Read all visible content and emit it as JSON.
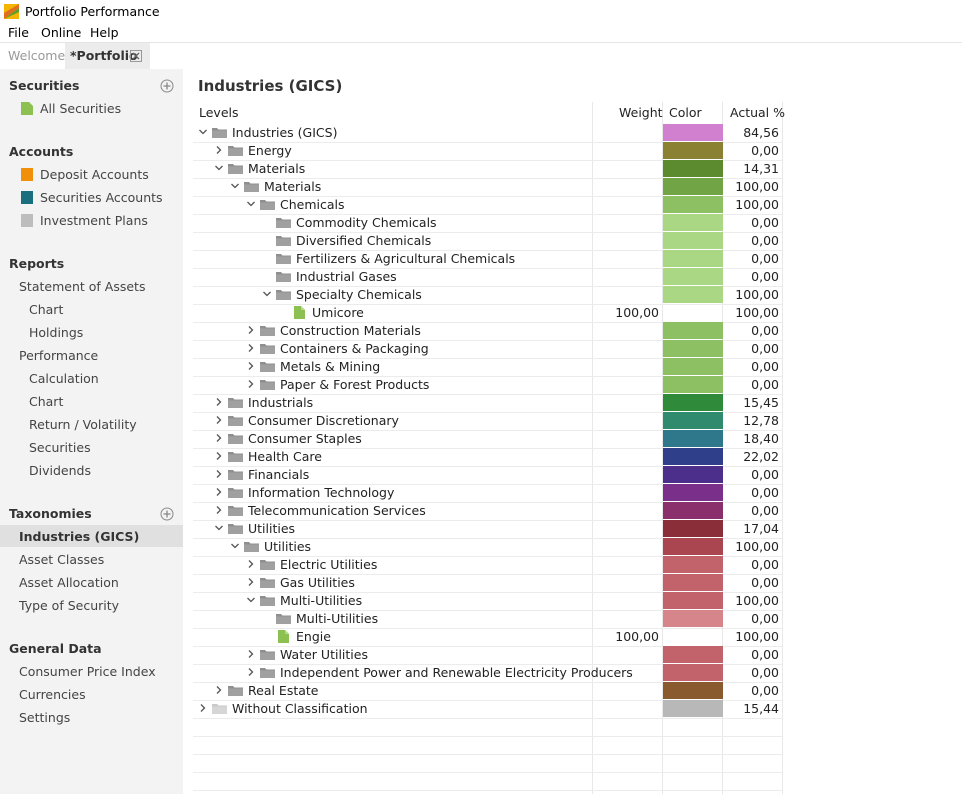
{
  "window": {
    "title": "Portfolio Performance"
  },
  "menu": [
    "File",
    "Online",
    "Help"
  ],
  "tabs": {
    "welcome": "Welcome",
    "portfolio": "*Portfolio"
  },
  "sidebar": {
    "securities": {
      "heading": "Securities",
      "items": [
        "All Securities"
      ]
    },
    "accounts": {
      "heading": "Accounts",
      "items": [
        "Deposit Accounts",
        "Securities Accounts",
        "Investment Plans"
      ]
    },
    "reports": {
      "heading": "Reports",
      "items": [
        "Statement of Assets",
        "Chart",
        "Holdings",
        "Performance",
        "Calculation",
        "Chart",
        "Return / Volatility",
        "Securities",
        "Dividends"
      ]
    },
    "taxonomies": {
      "heading": "Taxonomies",
      "items": [
        "Industries (GICS)",
        "Asset Classes",
        "Asset Allocation",
        "Type of Security"
      ]
    },
    "general": {
      "heading": "General Data",
      "items": [
        "Consumer Price Index",
        "Currencies",
        "Settings"
      ]
    }
  },
  "main": {
    "title": "Industries (GICS)",
    "columns": {
      "levels": "Levels",
      "weight": "Weight",
      "color": "Color",
      "actual": "Actual %"
    },
    "rows": [
      {
        "label": "Industries (GICS)",
        "level": 0,
        "toggle": "open",
        "icon": "folder",
        "weight": "",
        "color": "#d17fcf",
        "actual": "84,56"
      },
      {
        "label": "Energy",
        "level": 1,
        "toggle": "closed",
        "icon": "folder",
        "weight": "",
        "color": "#8a8232",
        "actual": "0,00"
      },
      {
        "label": "Materials",
        "level": 1,
        "toggle": "open",
        "icon": "folder",
        "weight": "",
        "color": "#5c8a2e",
        "actual": "14,31"
      },
      {
        "label": "Materials",
        "level": 2,
        "toggle": "open",
        "icon": "folder",
        "weight": "",
        "color": "#71a444",
        "actual": "100,00"
      },
      {
        "label": "Chemicals",
        "level": 3,
        "toggle": "open",
        "icon": "folder",
        "weight": "",
        "color": "#8dc063",
        "actual": "100,00"
      },
      {
        "label": "Commodity Chemicals",
        "level": 4,
        "toggle": "none",
        "icon": "folder",
        "weight": "",
        "color": "#a9d784",
        "actual": "0,00"
      },
      {
        "label": "Diversified Chemicals",
        "level": 4,
        "toggle": "none",
        "icon": "folder",
        "weight": "",
        "color": "#a9d784",
        "actual": "0,00"
      },
      {
        "label": "Fertilizers & Agricultural Chemicals",
        "level": 4,
        "toggle": "none",
        "icon": "folder",
        "weight": "",
        "color": "#a9d784",
        "actual": "0,00"
      },
      {
        "label": "Industrial Gases",
        "level": 4,
        "toggle": "none",
        "icon": "folder",
        "weight": "",
        "color": "#a9d784",
        "actual": "0,00"
      },
      {
        "label": "Specialty Chemicals",
        "level": 4,
        "toggle": "open",
        "icon": "folder",
        "weight": "",
        "color": "#a9d784",
        "actual": "100,00"
      },
      {
        "label": "Umicore",
        "level": 5,
        "toggle": "none",
        "icon": "security",
        "weight": "100,00",
        "color": "",
        "actual": "100,00"
      },
      {
        "label": "Construction Materials",
        "level": 3,
        "toggle": "closed",
        "icon": "folder",
        "weight": "",
        "color": "#8dc063",
        "actual": "0,00"
      },
      {
        "label": "Containers & Packaging",
        "level": 3,
        "toggle": "closed",
        "icon": "folder",
        "weight": "",
        "color": "#8dc063",
        "actual": "0,00"
      },
      {
        "label": "Metals & Mining",
        "level": 3,
        "toggle": "closed",
        "icon": "folder",
        "weight": "",
        "color": "#8dc063",
        "actual": "0,00"
      },
      {
        "label": "Paper & Forest Products",
        "level": 3,
        "toggle": "closed",
        "icon": "folder",
        "weight": "",
        "color": "#8dc063",
        "actual": "0,00"
      },
      {
        "label": "Industrials",
        "level": 1,
        "toggle": "closed",
        "icon": "folder",
        "weight": "",
        "color": "#2f8a3a",
        "actual": "15,45"
      },
      {
        "label": "Consumer Discretionary",
        "level": 1,
        "toggle": "closed",
        "icon": "folder",
        "weight": "",
        "color": "#2f8a6e",
        "actual": "12,78"
      },
      {
        "label": "Consumer Staples",
        "level": 1,
        "toggle": "closed",
        "icon": "folder",
        "weight": "",
        "color": "#2f778a",
        "actual": "18,40"
      },
      {
        "label": "Health Care",
        "level": 1,
        "toggle": "closed",
        "icon": "folder",
        "weight": "",
        "color": "#2f3f8a",
        "actual": "22,02"
      },
      {
        "label": "Financials",
        "level": 1,
        "toggle": "closed",
        "icon": "folder",
        "weight": "",
        "color": "#4b2f8a",
        "actual": "0,00"
      },
      {
        "label": "Information Technology",
        "level": 1,
        "toggle": "closed",
        "icon": "folder",
        "weight": "",
        "color": "#7a2f8a",
        "actual": "0,00"
      },
      {
        "label": "Telecommunication Services",
        "level": 1,
        "toggle": "closed",
        "icon": "folder",
        "weight": "",
        "color": "#8a2f6b",
        "actual": "0,00"
      },
      {
        "label": "Utilities",
        "level": 1,
        "toggle": "open",
        "icon": "folder",
        "weight": "",
        "color": "#8a2f3a",
        "actual": "17,04"
      },
      {
        "label": "Utilities",
        "level": 2,
        "toggle": "open",
        "icon": "folder",
        "weight": "",
        "color": "#a94650",
        "actual": "100,00"
      },
      {
        "label": "Electric Utilities",
        "level": 3,
        "toggle": "closed",
        "icon": "folder",
        "weight": "",
        "color": "#c2636b",
        "actual": "0,00"
      },
      {
        "label": "Gas Utilities",
        "level": 3,
        "toggle": "closed",
        "icon": "folder",
        "weight": "",
        "color": "#c2636b",
        "actual": "0,00"
      },
      {
        "label": "Multi-Utilities",
        "level": 3,
        "toggle": "open",
        "icon": "folder",
        "weight": "",
        "color": "#c2636b",
        "actual": "100,00"
      },
      {
        "label": "Multi-Utilities",
        "level": 4,
        "toggle": "none",
        "icon": "folder",
        "weight": "",
        "color": "#d6858b",
        "actual": "0,00"
      },
      {
        "label": "Engie",
        "level": 4,
        "toggle": "none",
        "icon": "security",
        "weight": "100,00",
        "color": "",
        "actual": "100,00"
      },
      {
        "label": "Water Utilities",
        "level": 3,
        "toggle": "closed",
        "icon": "folder",
        "weight": "",
        "color": "#c2636b",
        "actual": "0,00"
      },
      {
        "label": "Independent Power and Renewable Electricity Producers",
        "level": 3,
        "toggle": "closed",
        "icon": "folder",
        "weight": "",
        "color": "#c2636b",
        "actual": "0,00"
      },
      {
        "label": "Real Estate",
        "level": 1,
        "toggle": "closed",
        "icon": "folder",
        "weight": "",
        "color": "#8a5a2f",
        "actual": "0,00"
      },
      {
        "label": "Without Classification",
        "level": 0,
        "toggle": "closed",
        "icon": "folder-light",
        "weight": "",
        "color": "#b8b8b8",
        "actual": "15,44"
      }
    ]
  }
}
